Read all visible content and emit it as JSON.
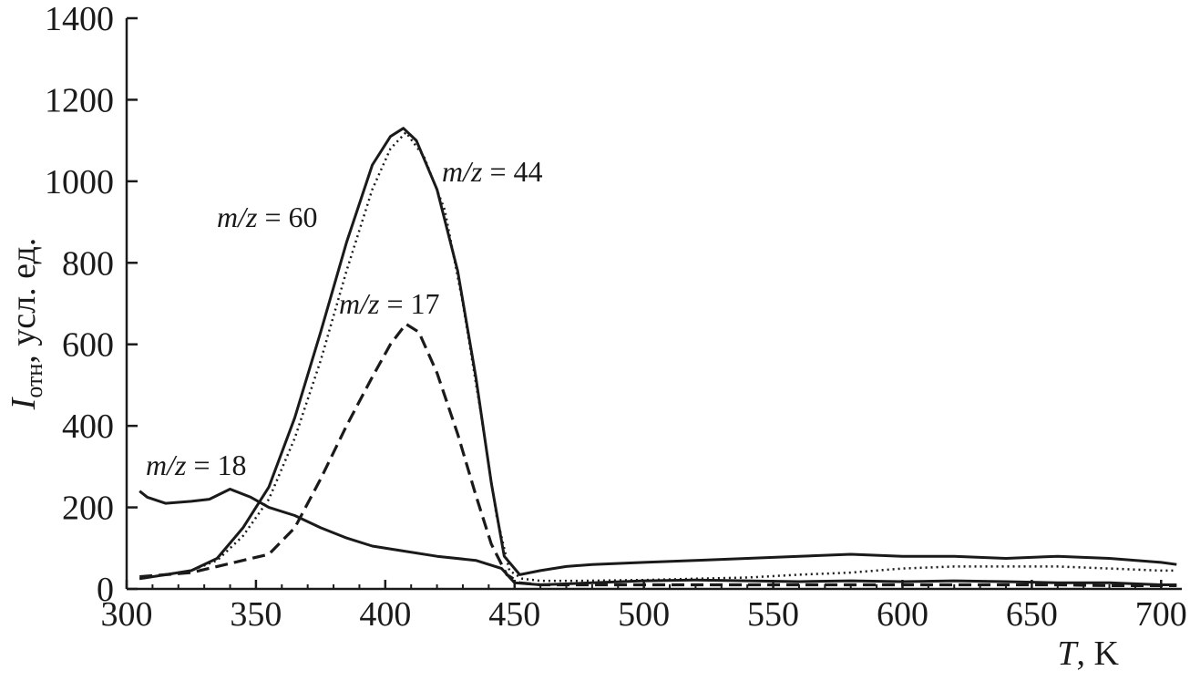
{
  "chart_data": {
    "type": "line",
    "title": "",
    "xlabel": {
      "var": "T",
      "unit": ", K"
    },
    "ylabel": {
      "var": "I",
      "sub": "отн",
      "rest": ", усл. ед."
    },
    "xlim": [
      300,
      708
    ],
    "ylim": [
      0,
      1400
    ],
    "xticks": [
      300,
      350,
      400,
      450,
      500,
      550,
      600,
      650,
      700
    ],
    "yticks": [
      0,
      200,
      400,
      600,
      800,
      1000,
      1200,
      1400
    ],
    "grid": false,
    "legend": "none",
    "series": [
      {
        "name": "m/z = 60",
        "label_var": "m/z",
        "label_val": " = 60",
        "style": "solid",
        "color": "#1a1a1a",
        "x": [
          305,
          315,
          325,
          335,
          345,
          355,
          365,
          375,
          385,
          395,
          402,
          407,
          412,
          420,
          428,
          435,
          441,
          446,
          452,
          460,
          470,
          480,
          500,
          520,
          540,
          560,
          580,
          600,
          620,
          640,
          660,
          680,
          700,
          706
        ],
        "y": [
          25,
          35,
          45,
          75,
          150,
          250,
          420,
          630,
          850,
          1040,
          1110,
          1130,
          1100,
          980,
          780,
          520,
          260,
          80,
          35,
          45,
          55,
          60,
          65,
          70,
          75,
          80,
          85,
          80,
          80,
          75,
          80,
          75,
          65,
          60
        ]
      },
      {
        "name": "m/z = 44",
        "label_var": "m/z",
        "label_val": " = 44",
        "style": "dotted",
        "color": "#1a1a1a",
        "x": [
          305,
          315,
          325,
          335,
          345,
          355,
          365,
          375,
          385,
          395,
          402,
          408,
          415,
          423,
          430,
          437,
          443,
          448,
          453,
          460,
          475,
          500,
          520,
          540,
          560,
          580,
          600,
          620,
          640,
          660,
          680,
          700,
          706
        ],
        "y": [
          25,
          35,
          45,
          70,
          130,
          220,
          370,
          560,
          780,
          980,
          1080,
          1120,
          1060,
          930,
          700,
          430,
          180,
          45,
          25,
          20,
          20,
          22,
          25,
          28,
          35,
          40,
          50,
          55,
          55,
          55,
          50,
          45,
          45
        ]
      },
      {
        "name": "m/z = 17",
        "label_var": "m/z",
        "label_val": " = 17",
        "style": "dashed",
        "color": "#1a1a1a",
        "x": [
          305,
          315,
          325,
          335,
          345,
          355,
          365,
          375,
          385,
          395,
          402,
          408,
          413,
          420,
          428,
          435,
          441,
          447,
          452,
          460,
          480,
          500,
          520,
          540,
          560,
          580,
          600,
          620,
          640,
          660,
          680,
          706
        ],
        "y": [
          30,
          35,
          40,
          55,
          70,
          85,
          150,
          270,
          400,
          520,
          600,
          650,
          630,
          530,
          380,
          230,
          110,
          35,
          15,
          10,
          10,
          10,
          10,
          10,
          10,
          10,
          10,
          10,
          10,
          10,
          8,
          8
        ]
      },
      {
        "name": "m/z = 18",
        "label_var": "m/z",
        "label_val": " = 18",
        "style": "solid",
        "color": "#1a1a1a",
        "x": [
          305,
          308,
          315,
          325,
          332,
          340,
          348,
          355,
          365,
          375,
          385,
          395,
          405,
          420,
          435,
          445,
          450,
          460,
          480,
          500,
          520,
          540,
          560,
          580,
          600,
          620,
          640,
          660,
          680,
          700,
          706
        ],
        "y": [
          240,
          225,
          210,
          215,
          220,
          245,
          225,
          200,
          180,
          150,
          125,
          105,
          95,
          80,
          70,
          50,
          15,
          10,
          15,
          20,
          22,
          20,
          18,
          20,
          18,
          20,
          18,
          15,
          15,
          10,
          10
        ]
      }
    ]
  }
}
